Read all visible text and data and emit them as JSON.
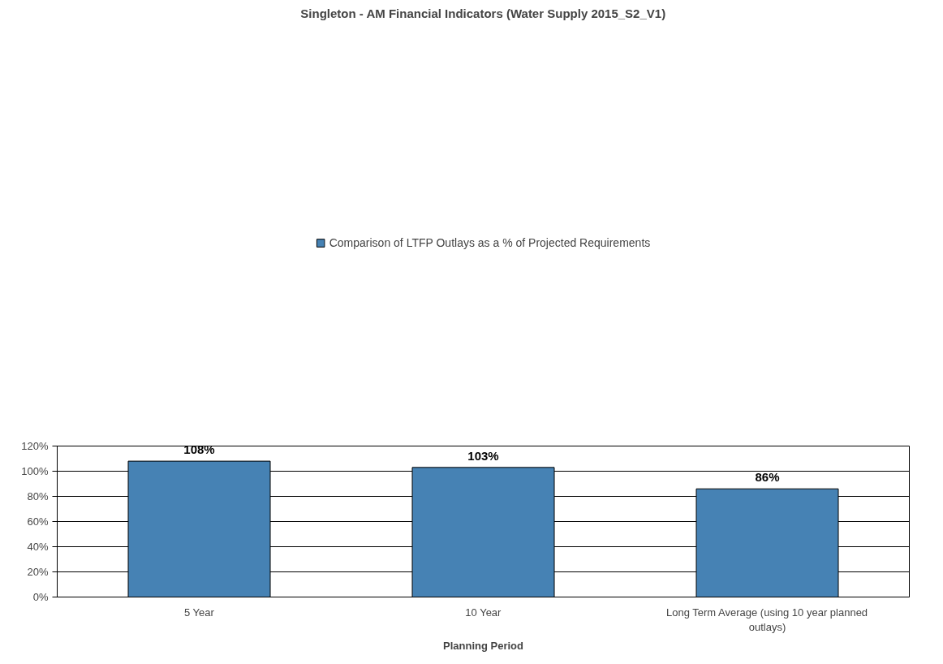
{
  "chart_data": {
    "type": "bar",
    "title": "Singleton - AM Financial Indicators (Water Supply 2015_S2_V1)",
    "xlabel": "Planning Period",
    "categories": [
      "5 Year",
      "10 Year",
      "Long Term Average (using 10 year planned outlays)"
    ],
    "series": [
      {
        "name": "Comparison of LTFP Outlays as a % of Projected Requirements",
        "color": "#4682b4",
        "values": [
          108,
          103,
          86
        ]
      }
    ],
    "value_labels": [
      "108%",
      "103%",
      "86%"
    ],
    "ylim": [
      0,
      120
    ],
    "yticks": [
      {
        "value": 0,
        "label": "0%"
      },
      {
        "value": 20,
        "label": "20%"
      },
      {
        "value": 40,
        "label": "40%"
      },
      {
        "value": 60,
        "label": "60%"
      },
      {
        "value": 80,
        "label": "80%"
      },
      {
        "value": 100,
        "label": "100%"
      },
      {
        "value": 120,
        "label": "120%"
      }
    ],
    "grid": "y",
    "legend": "top"
  }
}
